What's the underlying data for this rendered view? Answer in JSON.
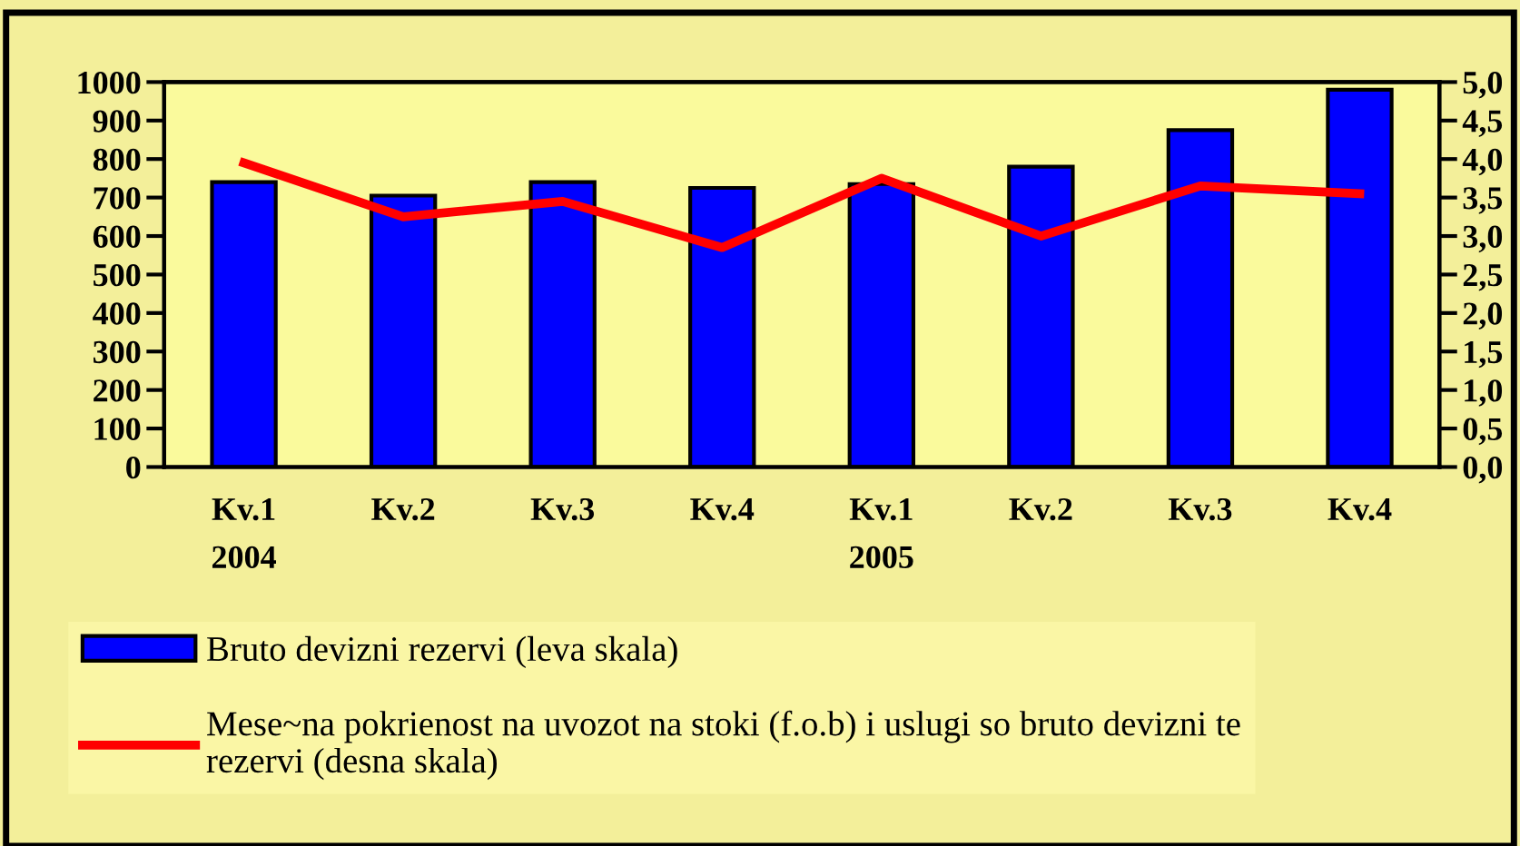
{
  "chart_data": {
    "type": "bar",
    "categories": [
      "Kv.1\n2004",
      "Kv.2",
      "Kv.3",
      "Kv.4",
      "Kv.1\n2005",
      "Kv.2",
      "Kv.3",
      "Kv.4"
    ],
    "series": [
      {
        "name": "Bruto devizni rezervi (leva skala)",
        "color": "#0000ff",
        "values": [
          740,
          705,
          740,
          725,
          735,
          780,
          875,
          980
        ]
      },
      {
        "name": "Mese~na pokrienost na uvozot na stoki (f.o.b) i uslugi so bruto devizni te\nrezervi (desna skala)",
        "type": "line",
        "axis": "y2",
        "color": "#ff0000",
        "marker": "none",
        "values": [
          3.95,
          3.25,
          3.45,
          2.85,
          3.75,
          3.0,
          3.65,
          3.55
        ]
      }
    ],
    "ylim": [
      0,
      1000
    ],
    "yticks": [
      0,
      100,
      200,
      300,
      400,
      500,
      600,
      700,
      800,
      900,
      1000
    ],
    "y2lim": [
      0,
      5
    ],
    "y2ticks": [
      {
        "value": 0,
        "label": "0,0"
      },
      {
        "value": 0.5,
        "label": "0,5"
      },
      {
        "value": 1,
        "label": "1,0"
      },
      {
        "value": 1.5,
        "label": "1,5"
      },
      {
        "value": 2,
        "label": "2,0"
      },
      {
        "value": 2.5,
        "label": "2,5"
      },
      {
        "value": 3,
        "label": "3,0"
      },
      {
        "value": 3.5,
        "label": "3,5"
      },
      {
        "value": 4,
        "label": "4,0"
      },
      {
        "value": 4.5,
        "label": "4,5"
      },
      {
        "value": 5,
        "label": "5,0"
      }
    ],
    "grid": false,
    "legend": "bottom"
  }
}
